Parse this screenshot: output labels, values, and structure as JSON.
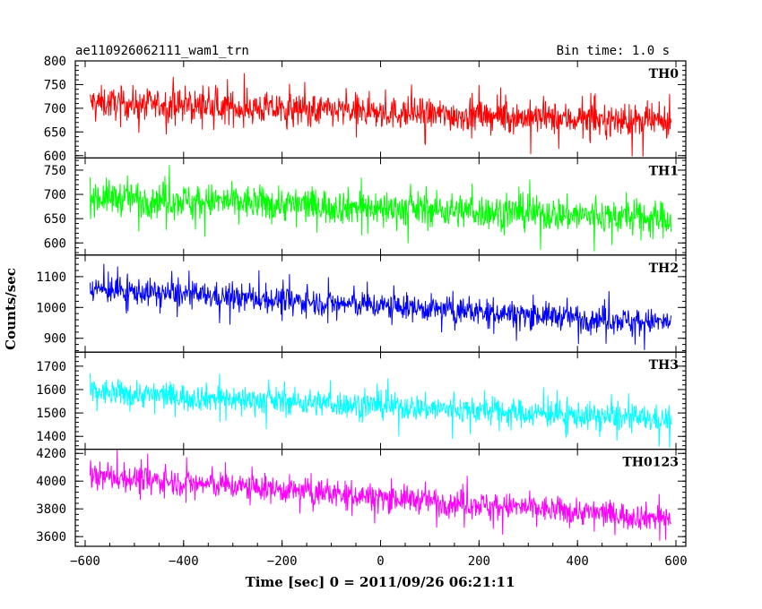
{
  "header": {
    "title": "ae110926062111_wam1_trn",
    "bin_time": "Bin time: 1.0 s"
  },
  "chart_data": {
    "type": "line",
    "xlabel": "Time [sec] 0 = 2011/09/26 06:21:11",
    "ylabel": "Counts/sec",
    "xlim": [
      -620,
      620
    ],
    "x_ticks": [
      -600,
      -400,
      -200,
      0,
      200,
      400,
      600
    ],
    "series_x_range": [
      -590,
      590
    ],
    "series_bin_seconds": 1.0,
    "panels": [
      {
        "name": "TH0",
        "color": "#ff0000",
        "ylim": [
          595,
          800
        ],
        "y_ticks": [
          600,
          650,
          700,
          750,
          800
        ],
        "trend_start": 712,
        "trend_end": 670,
        "noise_amplitude": 28,
        "spike_amplitude": 45
      },
      {
        "name": "TH1",
        "color": "#00ff00",
        "ylim": [
          575,
          775
        ],
        "y_ticks": [
          600,
          650,
          700,
          750
        ],
        "trend_start": 695,
        "trend_end": 650,
        "noise_amplitude": 30,
        "spike_amplitude": 45
      },
      {
        "name": "TH2",
        "color": "#0000ff",
        "ylim": [
          855,
          1170
        ],
        "y_ticks": [
          900,
          1000,
          1100
        ],
        "trend_start": 1060,
        "trend_end": 950,
        "noise_amplitude": 35,
        "spike_amplitude": 60
      },
      {
        "name": "TH3",
        "color": "#00ffff",
        "ylim": [
          1345,
          1760
        ],
        "y_ticks": [
          1400,
          1500,
          1600,
          1700
        ],
        "trend_start": 1590,
        "trend_end": 1470,
        "noise_amplitude": 48,
        "spike_amplitude": 80
      },
      {
        "name": "TH0123",
        "color": "#ff00ff",
        "ylim": [
          3530,
          4230
        ],
        "y_ticks": [
          3600,
          3800,
          4000,
          4200
        ],
        "trend_start": 4040,
        "trend_end": 3730,
        "noise_amplitude": 80,
        "spike_amplitude": 130
      }
    ]
  }
}
